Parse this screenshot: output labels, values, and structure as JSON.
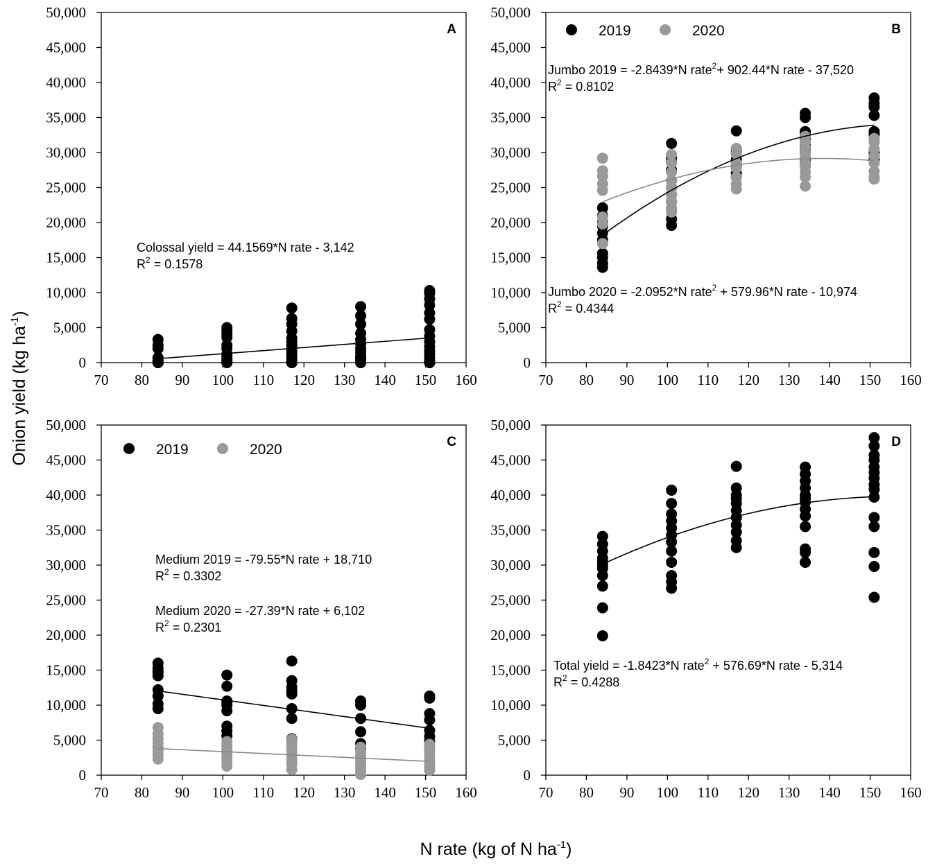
{
  "figure": {
    "xlabel": {
      "main": "N rate (kg of N ha",
      "sup": "-1",
      "end": ")"
    },
    "ylabel": {
      "main": "Onion yield (kg ha",
      "sup": "-1",
      "end": ")"
    }
  },
  "colors": {
    "y2019": "#000000",
    "y2020": "#999999",
    "fit2019": "#000000",
    "fit2020": "#888888"
  },
  "chart_data": [
    {
      "id": "A",
      "type": "scatter",
      "label": "A",
      "xlim": [
        70,
        160
      ],
      "ylim": [
        0,
        50000
      ],
      "xticks": [
        70,
        80,
        90,
        100,
        110,
        120,
        130,
        140,
        150,
        160
      ],
      "yticks": [
        0,
        5000,
        10000,
        15000,
        20000,
        25000,
        30000,
        35000,
        40000,
        45000,
        50000
      ],
      "xtick_labels": [
        "70",
        "80",
        "90",
        "100",
        "110",
        "120",
        "130",
        "140",
        "150",
        "160"
      ],
      "ytick_labels": [
        "0",
        "5,000",
        "10,000",
        "15,000",
        "20,000",
        "25,000",
        "30,000",
        "35,000",
        "40,000",
        "45,000",
        "50,000"
      ],
      "legend": [],
      "series": [
        {
          "name": "Colossal",
          "color": "#000000",
          "x": [
            84,
            84,
            84,
            84,
            84,
            84,
            84,
            84,
            101,
            101,
            101,
            101,
            101,
            101,
            101,
            101,
            101,
            101,
            101,
            101,
            117,
            117,
            117,
            117,
            117,
            117,
            117,
            117,
            117,
            117,
            117,
            117,
            117,
            117,
            117,
            117,
            134,
            134,
            134,
            134,
            134,
            134,
            134,
            134,
            134,
            134,
            134,
            134,
            134,
            151,
            151,
            151,
            151,
            151,
            151,
            151,
            151,
            151,
            151,
            151,
            151,
            151,
            151,
            151,
            151,
            151,
            151
          ],
          "y": [
            3300,
            2500,
            2000,
            700,
            300,
            0,
            0,
            200,
            5000,
            4600,
            4100,
            3600,
            2500,
            2000,
            1200,
            800,
            500,
            200,
            0,
            0,
            7800,
            6300,
            5500,
            4500,
            3500,
            3000,
            2500,
            2100,
            1600,
            1100,
            600,
            300,
            0,
            0,
            0,
            100,
            8000,
            6700,
            5500,
            4200,
            3300,
            2700,
            2000,
            1500,
            900,
            600,
            300,
            0,
            0,
            10200,
            9900,
            9100,
            8200,
            7100,
            6200,
            4700,
            3800,
            3000,
            2300,
            1700,
            1200,
            700,
            300,
            0,
            0,
            0,
            10300
          ]
        }
      ],
      "fits": [
        {
          "name": "Colossal fit",
          "color": "#000000",
          "coef": [
            0,
            44.1569,
            -3142
          ],
          "xrange": [
            84,
            151
          ]
        }
      ],
      "annotations": [
        {
          "lines": [
            {
              "text": "Colossal yield = 44.1569*N rate - 3,142"
            },
            {
              "pre": "R",
              "sup": "2",
              "post": " = 0.1578"
            }
          ]
        }
      ]
    },
    {
      "id": "B",
      "type": "scatter",
      "label": "B",
      "xlim": [
        70,
        160
      ],
      "ylim": [
        0,
        50000
      ],
      "xticks": [
        70,
        80,
        90,
        100,
        110,
        120,
        130,
        140,
        150,
        160
      ],
      "yticks": [
        0,
        5000,
        10000,
        15000,
        20000,
        25000,
        30000,
        35000,
        40000,
        45000,
        50000
      ],
      "xtick_labels": [
        "70",
        "80",
        "90",
        "100",
        "110",
        "120",
        "130",
        "140",
        "150",
        "160"
      ],
      "ytick_labels": [
        "0",
        "5,000",
        "10,000",
        "15,000",
        "20,000",
        "25,000",
        "30,000",
        "35,000",
        "40,000",
        "45,000",
        "50,000"
      ],
      "legend": [
        {
          "label": "2019",
          "color": "#000000"
        },
        {
          "label": "2020",
          "color": "#999999"
        }
      ],
      "series": [
        {
          "name": "2019",
          "color": "#000000",
          "x": [
            84,
            84,
            84,
            84,
            84,
            84,
            84,
            84,
            84,
            84,
            101,
            101,
            101,
            101,
            101,
            101,
            101,
            101,
            101,
            101,
            101,
            117,
            117,
            117,
            117,
            117,
            117,
            117,
            134,
            134,
            134,
            134,
            134,
            134,
            134,
            134,
            134,
            134,
            151,
            151,
            151,
            151,
            151,
            151,
            151,
            151,
            151,
            151
          ],
          "y": [
            22100,
            21000,
            20000,
            18500,
            17500,
            15600,
            15000,
            14200,
            13600,
            19500,
            31300,
            29300,
            27500,
            26000,
            25000,
            24000,
            23000,
            22000,
            20500,
            19600,
            28600,
            33100,
            30000,
            29000,
            28000,
            27000,
            26500,
            30500,
            35600,
            35000,
            33000,
            32000,
            31000,
            30000,
            29000,
            28500,
            32500,
            30500,
            37800,
            37000,
            36500,
            35300,
            33000,
            32500,
            30000,
            29500,
            29000,
            32700
          ]
        },
        {
          "name": "2020",
          "color": "#999999",
          "x": [
            84,
            84,
            84,
            84,
            84,
            84,
            84,
            84,
            101,
            101,
            101,
            101,
            101,
            101,
            101,
            101,
            101,
            117,
            117,
            117,
            117,
            117,
            117,
            117,
            134,
            134,
            134,
            134,
            134,
            134,
            134,
            134,
            134,
            134,
            151,
            151,
            151,
            151,
            151,
            151,
            151,
            151
          ],
          "y": [
            29200,
            27400,
            26600,
            25500,
            24600,
            20800,
            19800,
            17000,
            29700,
            28500,
            27200,
            26000,
            25000,
            24000,
            23000,
            22000,
            21500,
            30600,
            29800,
            28500,
            27800,
            26500,
            25500,
            24800,
            31500,
            30700,
            30000,
            29300,
            28500,
            28000,
            27200,
            26500,
            25200,
            32300,
            32000,
            31500,
            30500,
            29500,
            28500,
            27300,
            26500,
            26200
          ]
        }
      ],
      "fits": [
        {
          "name": "Jumbo 2019",
          "color": "#000000",
          "coef": [
            -2.8439,
            902.44,
            -37520
          ],
          "xrange": [
            84,
            151
          ]
        },
        {
          "name": "Jumbo 2020",
          "color": "#888888",
          "coef": [
            -2.0952,
            579.96,
            -10974
          ],
          "xrange": [
            84,
            151
          ]
        }
      ],
      "annotations": [
        {
          "lines": [
            {
              "pre": "Jumbo 2019 = -2.8439*N rate",
              "sup": "2",
              "post": "+ 902.44*N rate - 37,520"
            },
            {
              "pre": "R",
              "sup": "2",
              "post": " = 0.8102"
            }
          ]
        },
        {
          "lines": [
            {
              "pre": "Jumbo 2020 = -2.0952*N rate",
              "sup": "2",
              "post": " + 579.96*N rate - 10,974"
            },
            {
              "pre": "R",
              "sup": "2",
              "post": " = 0.4344"
            }
          ]
        }
      ]
    },
    {
      "id": "C",
      "type": "scatter",
      "label": "C",
      "xlim": [
        70,
        160
      ],
      "ylim": [
        0,
        50000
      ],
      "xticks": [
        70,
        80,
        90,
        100,
        110,
        120,
        130,
        140,
        150,
        160
      ],
      "yticks": [
        0,
        5000,
        10000,
        15000,
        20000,
        25000,
        30000,
        35000,
        40000,
        45000,
        50000
      ],
      "xtick_labels": [
        "70",
        "80",
        "90",
        "100",
        "110",
        "120",
        "130",
        "140",
        "150",
        "160"
      ],
      "ytick_labels": [
        "0",
        "5,000",
        "10,000",
        "15,000",
        "20,000",
        "25,000",
        "30,000",
        "35,000",
        "40,000",
        "45,000",
        "50,000"
      ],
      "legend": [
        {
          "label": "2019",
          "color": "#000000"
        },
        {
          "label": "2020",
          "color": "#999999"
        }
      ],
      "series": [
        {
          "name": "2019",
          "color": "#000000",
          "x": [
            84,
            84,
            84,
            84,
            84,
            84,
            84,
            84,
            84,
            101,
            101,
            101,
            101,
            101,
            101,
            101,
            101,
            101,
            117,
            117,
            117,
            117,
            117,
            117,
            117,
            117,
            134,
            134,
            134,
            134,
            134,
            134,
            134,
            151,
            151,
            151,
            151,
            151,
            151,
            151,
            151
          ],
          "y": [
            16000,
            15300,
            14800,
            14200,
            12200,
            11300,
            10200,
            9500,
            14700,
            14300,
            12700,
            10600,
            10000,
            9200,
            7000,
            6300,
            5600,
            10300,
            16300,
            13500,
            12600,
            12000,
            9500,
            8100,
            5200,
            11600,
            10600,
            10000,
            8100,
            6200,
            4500,
            3800,
            10500,
            11300,
            11000,
            8800,
            7900,
            6400,
            5500,
            4800,
            3900
          ]
        },
        {
          "name": "2020",
          "color": "#999999",
          "x": [
            84,
            84,
            84,
            84,
            84,
            84,
            84,
            84,
            101,
            101,
            101,
            101,
            101,
            101,
            101,
            101,
            117,
            117,
            117,
            117,
            117,
            117,
            117,
            117,
            134,
            134,
            134,
            134,
            134,
            134,
            134,
            134,
            151,
            151,
            151,
            151,
            151,
            151,
            151,
            151
          ],
          "y": [
            6800,
            5900,
            5200,
            4600,
            4000,
            3500,
            2900,
            2300,
            4800,
            4300,
            3800,
            3400,
            3000,
            2500,
            2000,
            1300,
            5100,
            4700,
            4100,
            3600,
            2900,
            2200,
            1600,
            800,
            4000,
            3300,
            2800,
            2300,
            1700,
            1100,
            600,
            100,
            4400,
            3900,
            3300,
            2700,
            2100,
            1600,
            1100,
            700
          ]
        }
      ],
      "fits": [
        {
          "name": "Medium 2019",
          "color": "#000000",
          "coef": [
            0,
            -79.55,
            18710
          ],
          "xrange": [
            84,
            151
          ]
        },
        {
          "name": "Medium 2020",
          "color": "#888888",
          "coef": [
            0,
            -27.39,
            6102
          ],
          "xrange": [
            84,
            151
          ]
        }
      ],
      "annotations": [
        {
          "lines": [
            {
              "text": "Medium 2019 = -79.55*N rate + 18,710"
            },
            {
              "pre": "R",
              "sup": "2",
              "post": " = 0.3302"
            }
          ]
        },
        {
          "lines": [
            {
              "text": "Medium 2020 = -27.39*N rate + 6,102"
            },
            {
              "pre": "R",
              "sup": "2",
              "post": " = 0.2301"
            }
          ]
        }
      ]
    },
    {
      "id": "D",
      "type": "scatter",
      "label": "D",
      "xlim": [
        70,
        160
      ],
      "ylim": [
        0,
        50000
      ],
      "xticks": [
        70,
        80,
        90,
        100,
        110,
        120,
        130,
        140,
        150,
        160
      ],
      "yticks": [
        0,
        5000,
        10000,
        15000,
        20000,
        25000,
        30000,
        35000,
        40000,
        45000,
        50000
      ],
      "xtick_labels": [
        "70",
        "80",
        "90",
        "100",
        "110",
        "120",
        "130",
        "140",
        "150",
        "160"
      ],
      "ytick_labels": [
        "0",
        "5,000",
        "10,000",
        "15,000",
        "20,000",
        "25,000",
        "30,000",
        "35,000",
        "40,000",
        "45,000",
        "50,000"
      ],
      "legend": [],
      "series": [
        {
          "name": "Total",
          "color": "#000000",
          "x": [
            84,
            84,
            84,
            84,
            84,
            84,
            84,
            84,
            84,
            84,
            84,
            101,
            101,
            101,
            101,
            101,
            101,
            101,
            101,
            101,
            101,
            101,
            101,
            117,
            117,
            117,
            117,
            117,
            117,
            117,
            117,
            117,
            117,
            117,
            134,
            134,
            134,
            134,
            134,
            134,
            134,
            134,
            134,
            134,
            134,
            134,
            134,
            151,
            151,
            151,
            151,
            151,
            151,
            151,
            151,
            151,
            151,
            151,
            151,
            151,
            151,
            151
          ],
          "y": [
            34100,
            33000,
            32000,
            31000,
            30500,
            29500,
            28500,
            27000,
            23900,
            19900,
            30000,
            40700,
            38800,
            37300,
            36300,
            35300,
            34300,
            33300,
            32000,
            30400,
            28500,
            27600,
            26700,
            44100,
            41000,
            40000,
            38800,
            37800,
            36800,
            35700,
            34700,
            33500,
            32500,
            39500,
            44000,
            43000,
            42000,
            41000,
            40000,
            39500,
            39000,
            38000,
            37000,
            35500,
            32300,
            31800,
            30400,
            48200,
            47000,
            45700,
            45000,
            44000,
            43200,
            42400,
            40800,
            39700,
            36800,
            35500,
            31800,
            29800,
            25400,
            41500
          ]
        }
      ],
      "fits": [
        {
          "name": "Total fit",
          "color": "#000000",
          "coef": [
            -1.8423,
            576.69,
            -5314
          ],
          "xrange": [
            84,
            151
          ]
        }
      ],
      "annotations": [
        {
          "lines": [
            {
              "pre": "Total yield = -1.8423*N rate",
              "sup": "2",
              "post": " + 576.69*N rate - 5,314"
            },
            {
              "pre": "R",
              "sup": "2",
              "post": " = 0.4288"
            }
          ]
        }
      ]
    }
  ]
}
